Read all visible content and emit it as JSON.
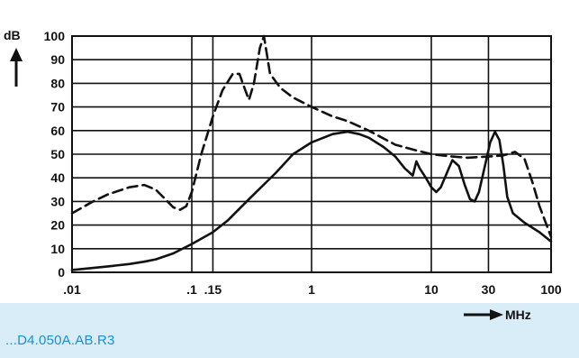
{
  "figure": {
    "reference_code": "...D4.050A.AB.R3",
    "reference_color": "#1a8fd0"
  },
  "chart_data": {
    "type": "line",
    "x_scale": "log",
    "xlim": [
      0.01,
      100
    ],
    "ylim": [
      0,
      100
    ],
    "xlabel": "MHz",
    "ylabel": "dB",
    "grid": true,
    "x_ticks": [
      {
        "value": 0.01,
        "label": ".01"
      },
      {
        "value": 0.1,
        "label": ".1"
      },
      {
        "value": 0.15,
        "label": ".15"
      },
      {
        "value": 1,
        "label": "1"
      },
      {
        "value": 10,
        "label": "10"
      },
      {
        "value": 30,
        "label": "30"
      },
      {
        "value": 100,
        "label": "100"
      }
    ],
    "y_ticks": [
      0,
      10,
      20,
      30,
      40,
      50,
      60,
      70,
      80,
      90,
      100
    ],
    "series": [
      {
        "style": "dashed",
        "color": "#111111",
        "points": [
          [
            0.01,
            25
          ],
          [
            0.015,
            30
          ],
          [
            0.02,
            33
          ],
          [
            0.03,
            36
          ],
          [
            0.04,
            37
          ],
          [
            0.05,
            35
          ],
          [
            0.06,
            31
          ],
          [
            0.07,
            27.5
          ],
          [
            0.08,
            26.5
          ],
          [
            0.09,
            28
          ],
          [
            0.1,
            34
          ],
          [
            0.12,
            50
          ],
          [
            0.15,
            66
          ],
          [
            0.18,
            77
          ],
          [
            0.22,
            84
          ],
          [
            0.25,
            84
          ],
          [
            0.28,
            77
          ],
          [
            0.3,
            73
          ],
          [
            0.33,
            80
          ],
          [
            0.37,
            95
          ],
          [
            0.4,
            100
          ],
          [
            0.45,
            84
          ],
          [
            0.55,
            78
          ],
          [
            0.7,
            74
          ],
          [
            1,
            70
          ],
          [
            1.5,
            66
          ],
          [
            2,
            64
          ],
          [
            3,
            60
          ],
          [
            5,
            54
          ],
          [
            7,
            52
          ],
          [
            10,
            50
          ],
          [
            15,
            49
          ],
          [
            20,
            48.5
          ],
          [
            30,
            49
          ],
          [
            40,
            49.5
          ],
          [
            50,
            51
          ],
          [
            60,
            48
          ],
          [
            70,
            38
          ],
          [
            80,
            28
          ],
          [
            100,
            15
          ]
        ]
      },
      {
        "style": "solid",
        "color": "#111111",
        "points": [
          [
            0.01,
            1
          ],
          [
            0.02,
            2.5
          ],
          [
            0.03,
            3.5
          ],
          [
            0.04,
            4.5
          ],
          [
            0.05,
            5.5
          ],
          [
            0.07,
            8
          ],
          [
            0.1,
            12
          ],
          [
            0.15,
            17
          ],
          [
            0.2,
            22
          ],
          [
            0.3,
            31
          ],
          [
            0.5,
            42
          ],
          [
            0.7,
            50
          ],
          [
            1,
            55
          ],
          [
            1.5,
            58.5
          ],
          [
            2,
            59.5
          ],
          [
            2.5,
            58.5
          ],
          [
            3,
            57
          ],
          [
            4,
            53
          ],
          [
            5,
            49
          ],
          [
            6,
            44
          ],
          [
            7,
            41
          ],
          [
            7.5,
            47
          ],
          [
            8,
            44
          ],
          [
            9,
            40
          ],
          [
            10,
            36
          ],
          [
            11,
            34
          ],
          [
            12,
            36
          ],
          [
            14,
            44
          ],
          [
            15,
            47.5
          ],
          [
            17,
            45
          ],
          [
            19,
            37
          ],
          [
            21,
            31
          ],
          [
            23,
            30
          ],
          [
            25,
            34
          ],
          [
            28,
            45
          ],
          [
            31,
            55
          ],
          [
            34,
            59.5
          ],
          [
            37,
            56
          ],
          [
            40,
            45
          ],
          [
            43,
            32
          ],
          [
            48,
            25
          ],
          [
            60,
            21
          ],
          [
            80,
            17
          ],
          [
            100,
            13
          ]
        ]
      }
    ]
  }
}
